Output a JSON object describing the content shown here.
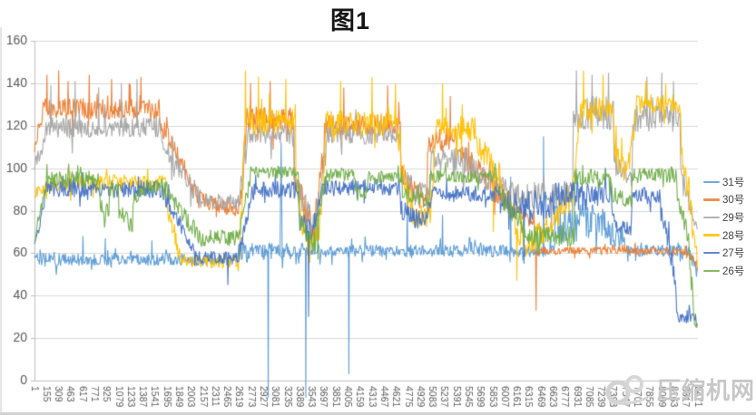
{
  "watermark": {
    "text": "压缩机网"
  },
  "chart_data": {
    "type": "line",
    "title": "图1",
    "xlabel": "",
    "ylabel": "",
    "grid": true,
    "background": "#ffffff",
    "legend_position": "right",
    "ylim": [
      0,
      160
    ],
    "y_ticks": [
      0,
      20,
      40,
      60,
      80,
      100,
      120,
      140,
      160
    ],
    "xlim": [
      1,
      8471
    ],
    "x_tick_step": 154,
    "x_tick_labels": [
      "1",
      "155",
      "309",
      "463",
      "617",
      "771",
      "925",
      "1079",
      "1233",
      "1387",
      "1541",
      "1695",
      "1849",
      "2003",
      "2157",
      "2311",
      "2465",
      "2619",
      "2773",
      "2927",
      "3081",
      "3235",
      "3389",
      "3543",
      "3697",
      "3851",
      "4005",
      "4159",
      "4313",
      "4467",
      "4621",
      "4775",
      "4929",
      "5083",
      "5237",
      "5391",
      "5545",
      "5699",
      "5853",
      "6007",
      "6161",
      "6315",
      "6469",
      "6623",
      "6777",
      "6931",
      "7085",
      "7239",
      "7393",
      "7547",
      "7701",
      "7855",
      "8009",
      "8163",
      "8317",
      "8471"
    ],
    "axis_color": "#bfbfbf",
    "grid_color": "#d9d9d9",
    "tick_label_color": "#595959",
    "series": [
      {
        "name": "31号",
        "color": "#5B9BD5",
        "segments": [
          [
            1,
            2600,
            57,
            57,
            3
          ],
          [
            2600,
            3430,
            61,
            61,
            4
          ],
          [
            3430,
            6650,
            61,
            61,
            3
          ],
          [
            6650,
            7300,
            74,
            74,
            10
          ],
          [
            7300,
            7550,
            70,
            66,
            6
          ],
          [
            7550,
            8380,
            61,
            61,
            3
          ],
          [
            8380,
            8471,
            58,
            50,
            4
          ]
        ],
        "spikes": [
          [
            620,
            68
          ],
          [
            905,
            67
          ],
          [
            1500,
            66
          ],
          [
            2985,
            -8,
            5
          ],
          [
            3150,
            112,
            14
          ],
          [
            3465,
            -8,
            5
          ],
          [
            4015,
            3,
            5
          ],
          [
            4760,
            86
          ],
          [
            5210,
            78
          ],
          [
            6080,
            96
          ],
          [
            6500,
            115
          ]
        ]
      },
      {
        "name": "30号",
        "color": "#ED7D31",
        "segments": [
          [
            1,
            110,
            112,
            124,
            4
          ],
          [
            110,
            1600,
            128,
            128,
            5
          ],
          [
            1600,
            2080,
            122,
            88,
            5
          ],
          [
            2080,
            2620,
            86,
            80,
            4
          ],
          [
            2620,
            2705,
            85,
            118,
            6
          ],
          [
            2705,
            3320,
            123,
            123,
            6
          ],
          [
            3320,
            3560,
            98,
            68,
            7
          ],
          [
            3560,
            3705,
            70,
            112,
            6
          ],
          [
            3705,
            4680,
            120,
            120,
            5
          ],
          [
            4680,
            5020,
            96,
            82,
            6
          ],
          [
            5020,
            5420,
            113,
            113,
            6
          ],
          [
            5420,
            6100,
            108,
            82,
            6
          ],
          [
            6100,
            6395,
            80,
            74,
            4
          ],
          [
            6395,
            8300,
            61,
            61,
            2
          ],
          [
            8300,
            8471,
            61,
            54,
            3
          ]
        ],
        "spikes": [
          [
            160,
            144
          ],
          [
            310,
            146
          ],
          [
            430,
            141
          ],
          [
            700,
            144
          ],
          [
            985,
            142
          ],
          [
            1210,
            140
          ],
          [
            1360,
            143
          ],
          [
            2760,
            140
          ],
          [
            3010,
            141
          ],
          [
            3950,
            138
          ],
          [
            4510,
            139
          ],
          [
            5310,
            134
          ],
          [
            6405,
            33
          ]
        ]
      },
      {
        "name": "29号",
        "color": "#A5A5A5",
        "segments": [
          [
            1,
            150,
            102,
            114,
            4
          ],
          [
            150,
            1620,
            119,
            119,
            5
          ],
          [
            1620,
            2150,
            112,
            84,
            5
          ],
          [
            2150,
            2620,
            84,
            84,
            4
          ],
          [
            2620,
            2725,
            88,
            112,
            5
          ],
          [
            2725,
            3320,
            116,
            116,
            5
          ],
          [
            3320,
            3580,
            94,
            72,
            6
          ],
          [
            3580,
            3725,
            74,
            108,
            5
          ],
          [
            3725,
            4680,
            116,
            116,
            5
          ],
          [
            4680,
            5060,
            96,
            86,
            5
          ],
          [
            5060,
            5520,
            104,
            104,
            6
          ],
          [
            5520,
            6060,
            102,
            88,
            6
          ],
          [
            6060,
            6880,
            87,
            87,
            7
          ],
          [
            6880,
            7400,
            126,
            126,
            8
          ],
          [
            7400,
            7640,
            102,
            95,
            6
          ],
          [
            7640,
            8250,
            124,
            124,
            7
          ],
          [
            8250,
            8400,
            98,
            80,
            6
          ],
          [
            8400,
            8471,
            76,
            70,
            4
          ]
        ],
        "spikes": [
          [
            210,
            139
          ],
          [
            520,
            141
          ],
          [
            820,
            138
          ],
          [
            1110,
            140
          ],
          [
            1310,
            142
          ],
          [
            6920,
            146
          ],
          [
            7120,
            144
          ],
          [
            7330,
            145
          ],
          [
            7820,
            143
          ],
          [
            8010,
            145
          ],
          [
            8160,
            141
          ]
        ]
      },
      {
        "name": "28号",
        "color": "#FFC000",
        "segments": [
          [
            1,
            200,
            88,
            93,
            3
          ],
          [
            200,
            1680,
            93,
            93,
            4
          ],
          [
            1680,
            1870,
            85,
            57,
            5
          ],
          [
            1870,
            2620,
            56,
            56,
            3
          ],
          [
            2620,
            2705,
            62,
            128,
            8
          ],
          [
            2705,
            3340,
            122,
            122,
            6
          ],
          [
            3340,
            3490,
            92,
            64,
            8
          ],
          [
            3490,
            3645,
            64,
            70,
            6
          ],
          [
            3645,
            3725,
            76,
            118,
            6
          ],
          [
            3725,
            4680,
            121,
            121,
            6
          ],
          [
            4680,
            4860,
            100,
            77,
            7
          ],
          [
            4860,
            5060,
            75,
            79,
            6
          ],
          [
            5060,
            5130,
            82,
            115,
            5
          ],
          [
            5130,
            5650,
            118,
            118,
            6
          ],
          [
            5650,
            5950,
            112,
            96,
            6
          ],
          [
            5950,
            6250,
            90,
            65,
            6
          ],
          [
            6250,
            6520,
            65,
            70,
            7
          ],
          [
            6520,
            6880,
            72,
            88,
            7
          ],
          [
            6880,
            6965,
            92,
            126,
            6
          ],
          [
            6965,
            7400,
            128,
            128,
            6
          ],
          [
            7400,
            7570,
            108,
            96,
            6
          ],
          [
            7570,
            7690,
            98,
            126,
            5
          ],
          [
            7690,
            8260,
            130,
            130,
            5
          ],
          [
            8260,
            8400,
            108,
            76,
            6
          ],
          [
            8400,
            8471,
            70,
            58,
            6
          ]
        ],
        "spikes": [
          [
            2695,
            146
          ],
          [
            2860,
            143
          ],
          [
            3210,
            142
          ],
          [
            3910,
            141
          ],
          [
            4310,
            143
          ],
          [
            4610,
            140
          ],
          [
            5210,
            140
          ],
          [
            5860,
            70
          ],
          [
            6160,
            47
          ],
          [
            7010,
            146
          ],
          [
            7260,
            144
          ],
          [
            7810,
            141
          ],
          [
            8060,
            140
          ]
        ]
      },
      {
        "name": "27号",
        "color": "#4472C4",
        "segments": [
          [
            1,
            150,
            63,
            88,
            3
          ],
          [
            150,
            1650,
            90,
            90,
            4
          ],
          [
            1650,
            2050,
            88,
            60,
            4
          ],
          [
            2050,
            2620,
            58,
            58,
            3
          ],
          [
            2620,
            2780,
            60,
            88,
            4
          ],
          [
            2780,
            3380,
            90,
            90,
            4
          ],
          [
            3380,
            3560,
            76,
            68,
            6
          ],
          [
            3560,
            3660,
            70,
            88,
            4
          ],
          [
            3660,
            4680,
            91,
            91,
            4
          ],
          [
            4680,
            5000,
            80,
            74,
            5
          ],
          [
            5000,
            5100,
            76,
            88,
            4
          ],
          [
            5100,
            5950,
            88,
            88,
            4
          ],
          [
            5950,
            6650,
            83,
            83,
            7
          ],
          [
            6650,
            7380,
            88,
            88,
            6
          ],
          [
            7380,
            7630,
            74,
            70,
            5
          ],
          [
            7630,
            8000,
            87,
            87,
            4
          ],
          [
            8000,
            8200,
            80,
            45,
            6
          ],
          [
            8200,
            8440,
            30,
            29,
            3
          ],
          [
            8440,
            8471,
            28,
            25,
            2
          ]
        ],
        "spikes": [
          [
            2470,
            45
          ],
          [
            3500,
            30
          ],
          [
            6250,
            55
          ]
        ]
      },
      {
        "name": "26号",
        "color": "#70AD47",
        "segments": [
          [
            1,
            160,
            67,
            94,
            3
          ],
          [
            160,
            840,
            95,
            95,
            4
          ],
          [
            840,
            960,
            82,
            80,
            4
          ],
          [
            960,
            1080,
            88,
            92,
            4
          ],
          [
            1080,
            1260,
            80,
            72,
            4
          ],
          [
            1260,
            1430,
            85,
            90,
            4
          ],
          [
            1430,
            1700,
            92,
            92,
            4
          ],
          [
            1700,
            2150,
            88,
            66,
            4
          ],
          [
            2150,
            2620,
            67,
            67,
            4
          ],
          [
            2620,
            2760,
            70,
            96,
            4
          ],
          [
            2760,
            3380,
            98,
            98,
            3
          ],
          [
            3380,
            3565,
            76,
            62,
            5
          ],
          [
            3565,
            3705,
            65,
            95,
            4
          ],
          [
            3705,
            4100,
            97,
            97,
            3
          ],
          [
            4100,
            4255,
            88,
            86,
            4
          ],
          [
            4255,
            4700,
            96,
            96,
            3
          ],
          [
            4700,
            5050,
            88,
            85,
            4
          ],
          [
            5050,
            5900,
            96,
            96,
            3
          ],
          [
            5900,
            6250,
            90,
            72,
            5
          ],
          [
            6250,
            6900,
            68,
            68,
            5
          ],
          [
            6900,
            7380,
            96,
            96,
            4
          ],
          [
            7380,
            7630,
            88,
            84,
            4
          ],
          [
            7630,
            8200,
            97,
            97,
            4
          ],
          [
            8200,
            8360,
            90,
            66,
            5
          ],
          [
            8360,
            8430,
            58,
            30,
            5
          ],
          [
            8430,
            8471,
            28,
            26,
            2
          ]
        ],
        "spikes": [
          [
            3620,
            57
          ],
          [
            6420,
            60
          ]
        ]
      }
    ]
  }
}
